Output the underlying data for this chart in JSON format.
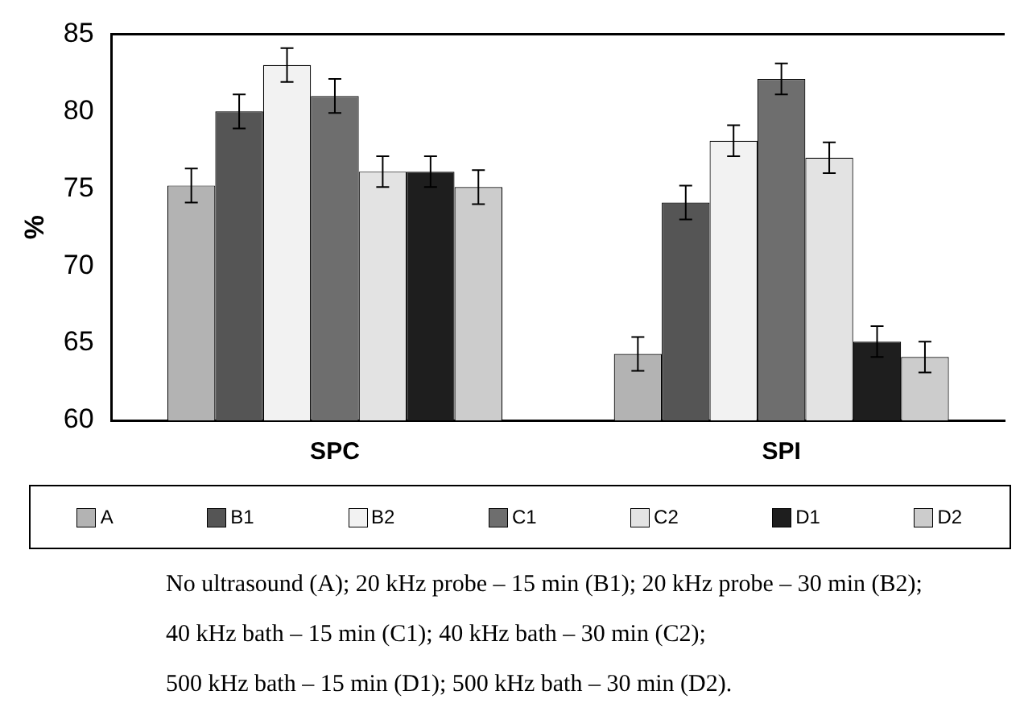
{
  "chart_data": {
    "type": "bar",
    "ylabel": "%",
    "categories": [
      "SPC",
      "SPI"
    ],
    "series": [
      {
        "name": "A",
        "color": "#b3b3b3",
        "values": [
          75.2,
          64.3
        ],
        "errors": [
          1.1,
          1.1
        ]
      },
      {
        "name": "B1",
        "color": "#555555",
        "values": [
          80,
          74.1
        ],
        "errors": [
          1.1,
          1.1
        ]
      },
      {
        "name": "B2",
        "color": "#f2f2f2",
        "values": [
          83,
          78.1
        ],
        "errors": [
          1.1,
          1
        ]
      },
      {
        "name": "C1",
        "color": "#6e6e6e",
        "values": [
          81,
          82.1
        ],
        "errors": [
          1.1,
          1
        ]
      },
      {
        "name": "C2",
        "color": "#e3e3e3",
        "values": [
          76.1,
          77
        ],
        "errors": [
          1,
          1
        ]
      },
      {
        "name": "D1",
        "color": "#1e1e1e",
        "values": [
          76.1,
          65.1
        ],
        "errors": [
          1,
          1
        ]
      },
      {
        "name": "D2",
        "color": "#cccccc",
        "values": [
          75.1,
          64.1
        ],
        "errors": [
          1.1,
          1
        ]
      }
    ],
    "ylim": [
      60,
      85
    ],
    "yticks": [
      60,
      65,
      70,
      75,
      80,
      85
    ],
    "grid": false,
    "legend": "bottom",
    "annotations": [
      "No ultrasound (A); 20 kHz probe – 15 min (B1); 20 kHz probe – 30 min (B2);",
      "40 kHz bath – 15 min (C1); 40 kHz bath – 30 min (C2);",
      "500 kHz bath – 15 min (D1); 500 kHz bath – 30 min (D2)."
    ]
  }
}
